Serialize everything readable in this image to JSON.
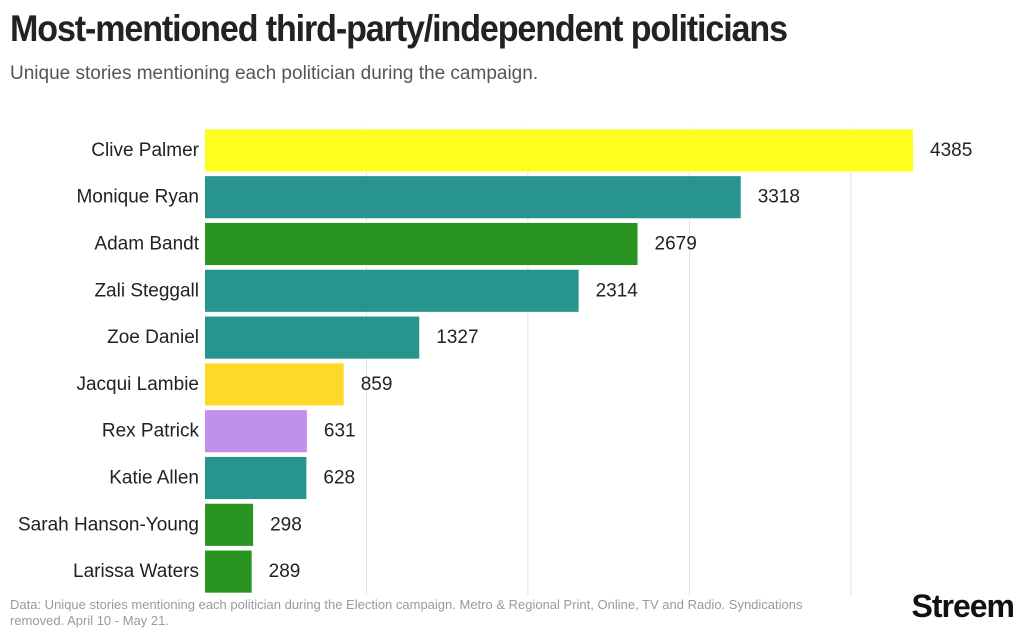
{
  "title": "Most-mentioned third-party/independent politicians",
  "subtitle": "Unique stories mentioning each politician during the campaign.",
  "footer": "Data: Unique stories mentioning each politician during the Election campaign. Metro & Regional Print, Online, TV and Radio. Syndications removed. April 10 - May 21.",
  "brand": "Streem",
  "chart_data": {
    "type": "bar",
    "orientation": "horizontal",
    "categories": [
      "Clive Palmer",
      "Monique Ryan",
      "Adam Bandt",
      "Zali Steggall",
      "Zoe Daniel",
      "Jacqui Lambie",
      "Rex Patrick",
      "Katie Allen",
      "Sarah Hanson-Young",
      "Larissa Waters"
    ],
    "values": [
      4385,
      3318,
      2679,
      2314,
      1327,
      859,
      631,
      628,
      298,
      289
    ],
    "colors": [
      "#ffff1f",
      "#28948e",
      "#2a9423",
      "#28948e",
      "#28948e",
      "#fdd928",
      "#c090ea",
      "#28948e",
      "#2a9423",
      "#2a9423"
    ],
    "xlim": [
      0,
      4500
    ],
    "gridlines": [
      1000,
      2000,
      3000,
      4000
    ],
    "grid": true
  }
}
